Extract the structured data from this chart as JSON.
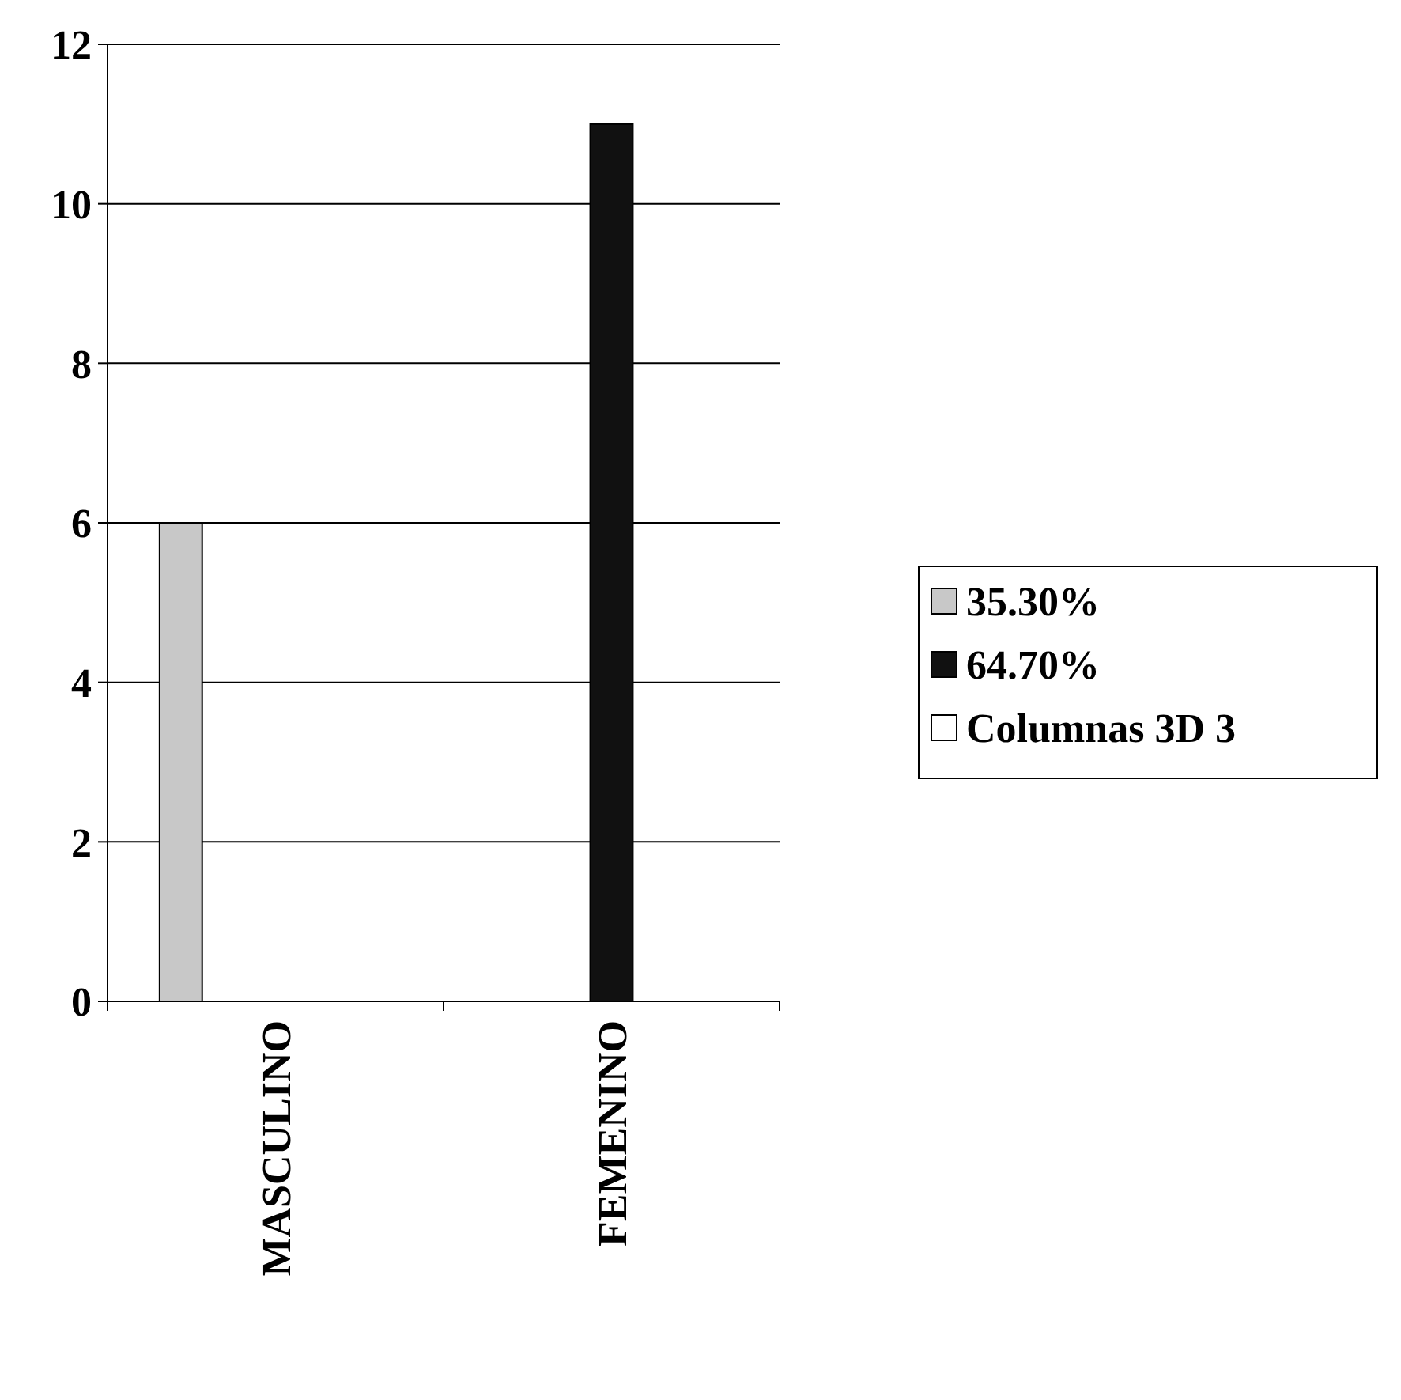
{
  "chart_data": {
    "type": "bar",
    "categories": [
      "MASCULINO",
      "FEMENINO"
    ],
    "series": [
      {
        "name": "35.30%",
        "color": "#c8c8c8",
        "values": [
          6,
          0
        ]
      },
      {
        "name": "64.70%",
        "color": "#111111",
        "values": [
          0,
          11
        ]
      },
      {
        "name": "Columnas 3D 3",
        "color": "#ffffff",
        "values": [
          0,
          0
        ]
      }
    ],
    "ylim": [
      0,
      12
    ],
    "yticks": [
      0,
      2,
      4,
      6,
      8,
      10,
      12
    ],
    "grid": "y",
    "legend": "right"
  }
}
